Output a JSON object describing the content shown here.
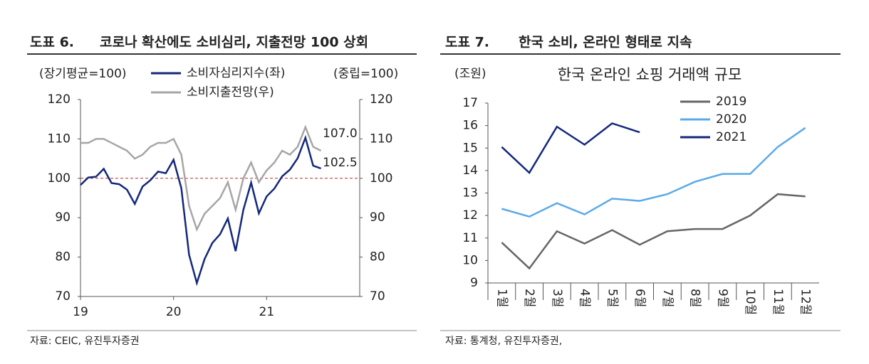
{
  "chart_data": [
    {
      "type": "line",
      "label": "도표 6.",
      "title": "코로나 확산에도 소비심리, 지출전망 100 상회",
      "y_label": "(장기평균=100)",
      "y2_label": "(중립=100)",
      "categories": [
        "19",
        null,
        null,
        null,
        null,
        null,
        null,
        null,
        null,
        null,
        null,
        null,
        "20",
        null,
        null,
        null,
        null,
        null,
        null,
        null,
        null,
        null,
        null,
        null,
        "21",
        null,
        null,
        null,
        null,
        null,
        null,
        null
      ],
      "series": [
        {
          "name": "소비자심리지수(좌)",
          "color": "#13287a",
          "values": [
            98.3,
            100.2,
            100.4,
            102.4,
            98.8,
            98.5,
            97.1,
            93.5,
            97.9,
            99.5,
            101.7,
            101.3,
            104.7,
            97.5,
            80.6,
            73.4,
            79.5,
            83.6,
            85.8,
            89.8,
            81.5,
            92.0,
            98.9,
            91.1,
            95.4,
            97.4,
            100.5,
            102.2,
            105.1,
            110.3,
            103.2,
            102.5
          ]
        },
        {
          "name": "소비지출전망(우)",
          "color": "#a6a6a6",
          "axis": "y2",
          "values": [
            109,
            109,
            110,
            110,
            109,
            108,
            107,
            105,
            106,
            108,
            109,
            109,
            110,
            106,
            93,
            87,
            91,
            93,
            95,
            99,
            92,
            100,
            104,
            99,
            102,
            104,
            107,
            106,
            108,
            113,
            108,
            107
          ]
        }
      ],
      "reference_line": 100,
      "annotations": [
        "107.0",
        "102.5"
      ],
      "ylim": [
        70,
        120
      ],
      "yticks": [
        70,
        80,
        90,
        100,
        110,
        120
      ],
      "y2lim": [
        70,
        120
      ],
      "y2ticks": [
        70,
        80,
        90,
        100,
        110,
        120
      ],
      "source": "자료: CEIC, 유진투자증권"
    },
    {
      "type": "line",
      "label": "도표 7.",
      "title": "한국 소비, 온라인 형태로 지속",
      "subtitle": "한국 온라인 쇼핑 거래액 규모",
      "y_label": "(조원)",
      "categories": [
        "1월",
        "2월",
        "3월",
        "4월",
        "5월",
        "6월",
        "7월",
        "8월",
        "9월",
        "10월",
        "11월",
        "12월"
      ],
      "series": [
        {
          "name": "2019",
          "color": "#666666",
          "values": [
            10.8,
            9.65,
            11.3,
            10.75,
            11.35,
            10.7,
            11.3,
            11.4,
            11.4,
            12.0,
            12.95,
            12.85
          ]
        },
        {
          "name": "2020",
          "color": "#5aaae8",
          "values": [
            12.3,
            11.95,
            12.55,
            12.05,
            12.75,
            12.65,
            12.95,
            13.5,
            13.85,
            13.85,
            15.05,
            15.9
          ]
        },
        {
          "name": "2021",
          "color": "#13287a",
          "values": [
            15.05,
            13.9,
            15.95,
            15.15,
            16.1,
            15.7,
            null,
            null,
            null,
            null,
            null,
            null
          ]
        }
      ],
      "ylim": [
        9,
        17
      ],
      "yticks": [
        9,
        10,
        11,
        12,
        13,
        14,
        15,
        16,
        17
      ],
      "source": "자료: 통계청, 유진투자증권,"
    }
  ]
}
